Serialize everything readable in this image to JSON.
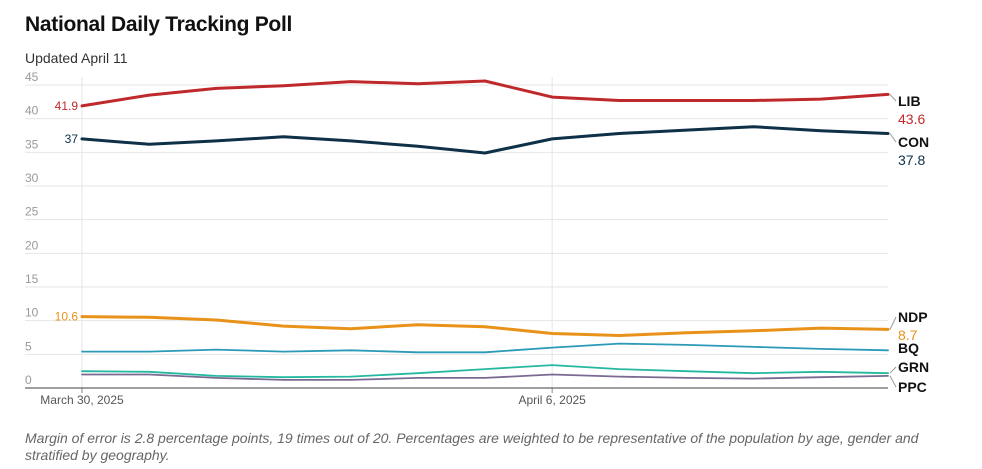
{
  "title": "National Daily Tracking Poll",
  "subtitle": "Updated April 11",
  "footnote": "Margin of error is 2.8 percentage points, 19 times out of 20. Percentages are weighted to be representative of the population by age, gender and stratified by geography.",
  "chart_data": {
    "type": "line",
    "title": "National Daily Tracking Poll",
    "subtitle": "Updated April 11",
    "x": [
      "2025-03-30",
      "2025-03-31",
      "2025-04-01",
      "2025-04-02",
      "2025-04-03",
      "2025-04-04",
      "2025-04-05",
      "2025-04-06",
      "2025-04-07",
      "2025-04-08",
      "2025-04-09",
      "2025-04-10",
      "2025-04-11"
    ],
    "x_tick_labels": [
      {
        "x": "2025-03-30",
        "label": "March 30, 2025"
      },
      {
        "x": "2025-04-06",
        "label": "April 6, 2025"
      }
    ],
    "ylim": [
      0,
      45
    ],
    "y_ticks": [
      0,
      5,
      10,
      15,
      20,
      25,
      30,
      35,
      40,
      45
    ],
    "grid": true,
    "series": [
      {
        "name": "LIB",
        "color": "#c0292b",
        "values": [
          41.9,
          43.5,
          44.5,
          44.9,
          45.5,
          45.2,
          45.6,
          43.2,
          42.7,
          42.7,
          42.7,
          42.9,
          43.6
        ],
        "start_label": "41.9",
        "end_label": "43.6"
      },
      {
        "name": "CON",
        "color": "#0e3148",
        "values": [
          37,
          36.2,
          36.7,
          37.3,
          36.7,
          35.9,
          34.9,
          37,
          37.8,
          38.3,
          38.8,
          38.2,
          37.8
        ],
        "start_label": "37",
        "end_label": "37.8"
      },
      {
        "name": "NDP",
        "color": "#e8921a",
        "values": [
          10.6,
          10.5,
          10.1,
          9.2,
          8.8,
          9.4,
          9.1,
          8.1,
          7.8,
          8.2,
          8.5,
          8.9,
          8.7
        ],
        "start_label": "10.6",
        "end_label": "8.7"
      },
      {
        "name": "BQ",
        "color": "#2b9ab8",
        "values": [
          5.4,
          5.4,
          5.7,
          5.4,
          5.6,
          5.3,
          5.3,
          6,
          6.6,
          6.4,
          6.1,
          5.8,
          5.6
        ],
        "end_label": ""
      },
      {
        "name": "GRN",
        "color": "#25b8a0",
        "values": [
          2.5,
          2.4,
          1.8,
          1.6,
          1.7,
          2.2,
          2.8,
          3.4,
          2.8,
          2.5,
          2.2,
          2.4,
          2.2
        ],
        "end_label": ""
      },
      {
        "name": "PPC",
        "color": "#7a6a92",
        "values": [
          2,
          2,
          1.5,
          1.2,
          1.2,
          1.5,
          1.5,
          2,
          1.7,
          1.5,
          1.4,
          1.6,
          1.8
        ],
        "end_label": ""
      }
    ]
  }
}
